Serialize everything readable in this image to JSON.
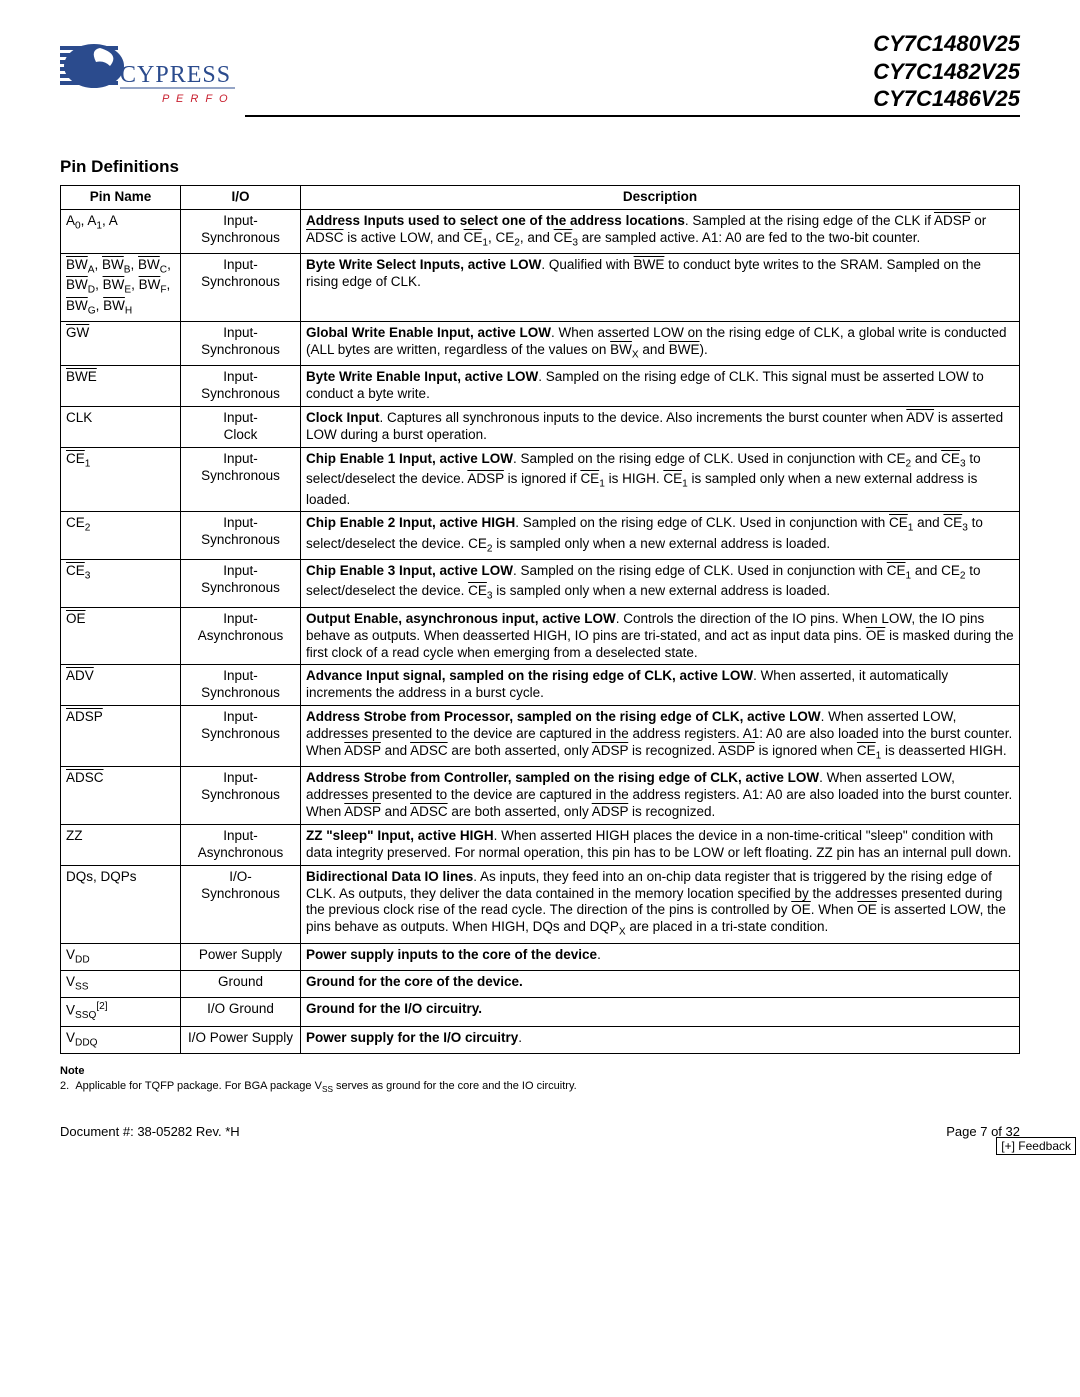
{
  "header": {
    "part_numbers": [
      "CY7C1480V25",
      "CY7C1482V25",
      "CY7C1486V25"
    ],
    "logo_text": "CYPRESS",
    "logo_tagline": "P E R F O R M",
    "logo_stripe_color": "#2b4b8d",
    "logo_tagline_color": "#c8202f"
  },
  "section_title": "Pin Definitions",
  "table": {
    "columns": [
      "Pin Name",
      "I/O",
      "Description"
    ],
    "rows": [
      {
        "pin_html": "A<sub>0</sub>, A<sub>1</sub>, A",
        "io": "Input-Synchronous",
        "desc_html": "<span class='b'>Address Inputs used to select one of the address locations</span>. Sampled at the rising edge of the CLK if <span class='overline'>ADSP</span> or <span class='overline'>ADSC</span> is active LOW, and <span class='overline'>CE</span><sub>1</sub>, CE<sub>2</sub>, and <span class='overline'>CE</span><sub>3</sub> are sampled active. A1: A0 are fed to the two-bit counter."
      },
      {
        "pin_html": "<span class='overline'>BW</span><sub>A</sub>, <span class='overline'>BW</span><sub>B</sub>, <span class='overline'>BW</span><sub>C</sub>, <span class='overline'>BW</span><sub>D</sub>, <span class='overline'>BW</span><sub>E</sub>, <span class='overline'>BW</span><sub>F</sub>, <span class='overline'>BW</span><sub>G</sub>, <span class='overline'>BW</span><sub>H</sub>",
        "io": "Input-Synchronous",
        "desc_html": "<span class='b'>Byte Write Select Inputs, active LOW</span>. Qualified with <span class='overline'>BWE</span> to conduct byte writes to the SRAM. Sampled on the rising edge of CLK."
      },
      {
        "pin_html": "<span class='overline'>GW</span>",
        "io": "Input-Synchronous",
        "desc_html": "<span class='b'>Global Write Enable Input, active LOW</span>. When asserted LOW on the rising edge of CLK, a global write is conducted (ALL bytes are written, regardless of the values on <span class='overline'>BW</span><sub>X</sub> and <span class='overline'>BWE</span>)."
      },
      {
        "pin_html": "<span class='overline'>BWE</span>",
        "io": "Input-Synchronous",
        "desc_html": "<span class='b'>Byte Write Enable Input, active LOW</span>. Sampled on the rising edge of CLK. This signal must be asserted LOW to conduct a byte write."
      },
      {
        "pin_html": "CLK",
        "io": "Input-Clock",
        "desc_html": "<span class='b'>Clock Input</span>. Captures all synchronous inputs to the device. Also increments the burst counter when <span class='overline'>ADV</span> is asserted LOW during a burst operation."
      },
      {
        "pin_html": "<span class='overline'>CE</span><sub>1</sub>",
        "io": "Input-Synchronous",
        "desc_html": "<span class='b'>Chip Enable 1 Input, active LOW</span>. Sampled on the rising edge of CLK. Used in conjunction with CE<sub>2</sub> and <span class='overline'>CE</span><sub>3</sub> to select/deselect the device. <span class='overline'>ADSP</span> is ignored if <span class='overline'>CE</span><sub>1</sub> is HIGH. <span class='overline'>CE</span><sub>1</sub> is sampled only when a new external address is loaded."
      },
      {
        "pin_html": "CE<sub>2</sub>",
        "io": "Input-Synchronous",
        "desc_html": "<span class='b'>Chip Enable 2 Input, active HIGH</span>. Sampled on the rising edge of CLK. Used in conjunction with <span class='overline'>CE</span><sub>1</sub> and <span class='overline'>CE</span><sub>3</sub> to select/deselect the device. CE<sub>2</sub> is sampled only when a new external address is loaded."
      },
      {
        "pin_html": "<span class='overline'>CE</span><sub>3</sub>",
        "io": "Input-Synchronous",
        "desc_html": "<span class='b'>Chip Enable 3 Input, active LOW</span>. Sampled on the rising edge of CLK. Used in conjunction with <span class='overline'>CE</span><sub>1</sub> and CE<sub>2</sub> to select/deselect the device. <span class='overline'>CE</span><sub>3</sub> is sampled only when a new external address is loaded."
      },
      {
        "pin_html": "<span class='overline'>OE</span>",
        "io": "Input-Asynchronous",
        "desc_html": "<span class='b'>Output Enable, asynchronous input, active LOW</span>. Controls the direction of the IO pins. When LOW, the IO pins behave as outputs. When deasserted HIGH, IO pins are tri-stated, and act as input data pins. <span class='overline'>OE</span> is masked during the first clock of a read cycle when emerging from a deselected state."
      },
      {
        "pin_html": "<span class='overline'>ADV</span>",
        "io": "Input-Synchronous",
        "desc_html": "<span class='b'>Advance Input signal, sampled on the rising edge of CLK, active LOW</span>. When asserted, it automatically increments the address in a burst cycle."
      },
      {
        "pin_html": "<span class='overline'>ADSP</span>",
        "io": "Input-Synchronous",
        "desc_html": "<span class='b'>Address Strobe from Processor, sampled on the rising edge of CLK, active LOW</span>. When asserted LOW, addresses presented to the device are captured in the address registers. A1: A0 are also loaded into the burst counter. When <span class='overline'>ADSP</span> and <span class='overline'>ADSC</span> are both asserted, only <span class='overline'>ADSP</span> is recognized. <span class='overline'>ASDP</span> is ignored when <span class='overline'>CE</span><sub>1</sub> is deasserted HIGH."
      },
      {
        "pin_html": "<span class='overline'>ADSC</span>",
        "io": "Input-Synchronous",
        "desc_html": "<span class='b'>Address Strobe from Controller, sampled on the rising edge of CLK, active LOW</span>. When asserted LOW, addresses presented to the device are captured in the address registers. A1: A0 are also loaded into the burst counter. When <span class='overline'>ADSP</span> and <span class='overline'>ADSC</span> are both asserted, only <span class='overline'>ADSP</span> is recognized."
      },
      {
        "pin_html": "ZZ",
        "io": "Input-Asynchronous",
        "desc_html": "<span class='b'>ZZ \"sleep\" Input, active HIGH</span>. When asserted HIGH places the device in a non-time-critical \"sleep\" condition with data integrity preserved. For normal operation, this pin has to be LOW or left floating. ZZ pin has an internal pull down."
      },
      {
        "pin_html": "DQs, DQPs",
        "io": "I/O-Synchronous",
        "desc_html": "<span class='b'>Bidirectional Data IO lines</span>. As inputs, they feed into an on-chip data register that is triggered by the rising edge of CLK. As outputs, they deliver the data contained in the memory location specified by the addresses presented during the previous clock rise of the read cycle. The direction of the pins is controlled by <span class='overline'>OE</span>. When <span class='overline'>OE</span> is asserted LOW, the pins behave as outputs. When HIGH, DQs and DQP<sub>X</sub> are placed in a tri-state condition."
      },
      {
        "pin_html": "V<sub>DD</sub>",
        "io": "Power Supply",
        "desc_html": "<span class='b'>Power supply inputs to the core of the device</span>."
      },
      {
        "pin_html": "V<sub>SS</sub>",
        "io": "Ground",
        "desc_html": "<span class='b'>Ground for the core of the device.</span>"
      },
      {
        "pin_html": "V<sub>SSQ</sub><sup>[2]</sup>",
        "io": "I/O Ground",
        "desc_html": "<span class='b'>Ground for the I/O circuitry.</span>"
      },
      {
        "pin_html": "V<sub>DDQ</sub>",
        "io": "I/O Power Supply",
        "desc_html": "<span class='b'>Power supply for the I/O circuitry</span>."
      }
    ]
  },
  "note": {
    "heading": "Note",
    "item_num": "2.",
    "item_html": "Applicable for TQFP package. For BGA package V<sub>SS</sub> serves as ground for the core and the IO circuitry."
  },
  "footer": {
    "doc": "Document #: 38-05282 Rev. *H",
    "page": "Page 7 of 32"
  },
  "feedback_label": "[+] Feedback"
}
